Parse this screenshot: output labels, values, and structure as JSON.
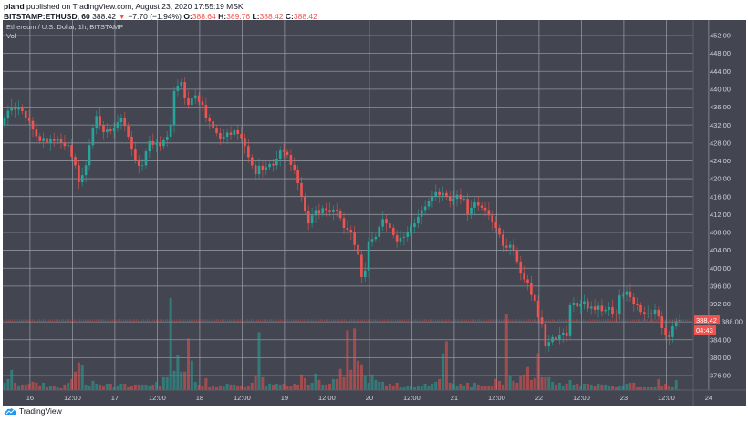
{
  "header": {
    "author": "pland",
    "published_text": "published on TradingView.com, August 23, 2020 17:55:19 MSK",
    "symbol": "BITSTAMP:ETHUSD, 60",
    "last": "388.42",
    "change_arrow": "▼",
    "change": "−7.70 (−1.94%)",
    "o_label": "O:",
    "o": "388.64",
    "h_label": "H:",
    "h": "389.76",
    "l_label": "L:",
    "l": "388.42",
    "c_label": "C:",
    "c": "388.42"
  },
  "legend": {
    "title": "Ethereum / U.S. Dollar, 1h, BITSTAMP",
    "vol": "Vol"
  },
  "footer": {
    "brand": "TradingView",
    "logo_icon": "tradingview-cloud-icon"
  },
  "colors": {
    "up": "#26a69a",
    "down": "#ef5350",
    "pane": "#434651",
    "grid": "#a3a6af",
    "text": "#d1d4dc"
  },
  "chart_data": {
    "type": "candlestick",
    "interval": "1h",
    "symbol": "BITSTAMP:ETHUSD",
    "ylim": [
      372,
      456
    ],
    "y_ticks": [
      "452.00",
      "448.00",
      "444.00",
      "440.00",
      "436.00",
      "432.00",
      "428.00",
      "424.00",
      "420.00",
      "416.00",
      "412.00",
      "408.00",
      "404.00",
      "400.00",
      "396.00",
      "392.00",
      "388.00",
      "384.00",
      "380.00",
      "376.00"
    ],
    "x_ticks": [
      "16",
      "12:00",
      "17",
      "12:00",
      "18",
      "12:00",
      "19",
      "12:00",
      "20",
      "12:00",
      "21",
      "12:00",
      "22",
      "12:00",
      "23",
      "12:00",
      "24"
    ],
    "last_price_label": "388.42",
    "countdown_label": "04:43",
    "first_open": 432.0,
    "closes": [
      433.5,
      435.2,
      436.1,
      435.4,
      436.0,
      435.1,
      433.6,
      432.9,
      431.0,
      429.5,
      428.4,
      429.1,
      427.9,
      428.8,
      428.4,
      429.0,
      428.1,
      427.3,
      427.5,
      424.9,
      423.0,
      419.2,
      420.8,
      423.0,
      427.5,
      431.4,
      434.0,
      431.9,
      430.4,
      431.0,
      430.6,
      431.4,
      432.6,
      433.5,
      431.8,
      429.4,
      426.5,
      424.3,
      422.9,
      423.0,
      426.1,
      428.4,
      427.6,
      428.1,
      427.3,
      428.6,
      429.4,
      432.0,
      439.6,
      440.8,
      441.6,
      438.0,
      436.5,
      437.9,
      438.6,
      437.2,
      436.5,
      433.5,
      432.8,
      431.4,
      430.2,
      429.0,
      429.4,
      430.3,
      429.8,
      430.8,
      430.0,
      429.1,
      427.3,
      424.8,
      423.0,
      421.0,
      422.9,
      422.0,
      422.6,
      423.3,
      423.0,
      424.5,
      426.3,
      426.0,
      425.3,
      423.1,
      422.0,
      419.0,
      416.0,
      412.8,
      410.0,
      411.8,
      413.0,
      412.2,
      413.4,
      413.0,
      412.5,
      413.1,
      412.7,
      411.2,
      409.0,
      408.6,
      408.0,
      405.2,
      403.0,
      398.0,
      399.5,
      406.0,
      406.5,
      407.0,
      409.3,
      411.0,
      410.0,
      409.0,
      407.4,
      406.0,
      406.8,
      407.0,
      407.9,
      409.2,
      410.0,
      411.5,
      413.0,
      413.8,
      415.0,
      416.0,
      417.0,
      416.3,
      416.8,
      416.0,
      415.1,
      415.5,
      416.4,
      415.5,
      415.5,
      412.0,
      413.5,
      414.7,
      414.0,
      413.5,
      413.0,
      411.8,
      410.2,
      409.0,
      407.5,
      405.0,
      404.6,
      405.2,
      404.0,
      401.5,
      398.8,
      397.5,
      396.8,
      394.0,
      392.7,
      389.0,
      387.6,
      382.5,
      383.5,
      384.6,
      384.0,
      385.1,
      385.6,
      384.8,
      391.7,
      392.3,
      391.4,
      392.0,
      392.6,
      391.0,
      391.4,
      390.7,
      391.6,
      390.4,
      390.7,
      391.3,
      389.8,
      389.7,
      393.9,
      394.0,
      394.8,
      393.5,
      392.0,
      391.7,
      390.2,
      389.7,
      389.9,
      389.7,
      390.7,
      389.2,
      386.6,
      385.0,
      384.6,
      387.0,
      388.2,
      388.42
    ],
    "volume_relative": [
      8,
      12,
      22,
      8,
      4,
      6,
      6,
      7,
      9,
      8,
      5,
      8,
      3,
      5,
      4,
      3,
      2,
      6,
      8,
      12,
      20,
      30,
      27,
      6,
      4,
      10,
      7,
      6,
      4,
      7,
      7,
      3,
      5,
      7,
      7,
      3,
      5,
      6,
      6,
      6,
      6,
      5,
      6,
      9,
      5,
      14,
      14,
      100,
      21,
      38,
      20,
      20,
      56,
      32,
      9,
      6,
      4,
      13,
      3,
      5,
      3,
      5,
      4,
      7,
      6,
      6,
      4,
      5,
      3,
      5,
      8,
      15,
      63,
      14,
      5,
      7,
      6,
      7,
      6,
      7,
      4,
      4,
      7,
      6,
      17,
      13,
      6,
      8,
      18,
      11,
      6,
      6,
      7,
      12,
      12,
      23,
      14,
      65,
      22,
      67,
      32,
      28,
      16,
      8,
      17,
      11,
      9,
      9,
      5,
      7,
      5,
      8,
      3,
      3,
      4,
      4,
      3,
      4,
      5,
      7,
      5,
      7,
      9,
      12,
      40,
      53,
      8,
      7,
      5,
      7,
      5,
      8,
      3,
      8,
      6,
      4,
      4,
      4,
      5,
      12,
      10,
      6,
      82,
      16,
      10,
      8,
      16,
      17,
      25,
      11,
      13,
      40,
      14,
      14,
      14,
      9,
      6,
      8,
      5,
      7,
      11,
      6,
      7,
      5,
      7,
      7,
      6,
      4,
      7,
      6,
      6,
      5,
      4,
      3,
      4,
      4,
      7,
      8,
      8,
      3,
      3,
      3,
      3,
      3,
      3,
      12,
      5,
      7,
      4,
      3,
      11,
      1
    ]
  }
}
